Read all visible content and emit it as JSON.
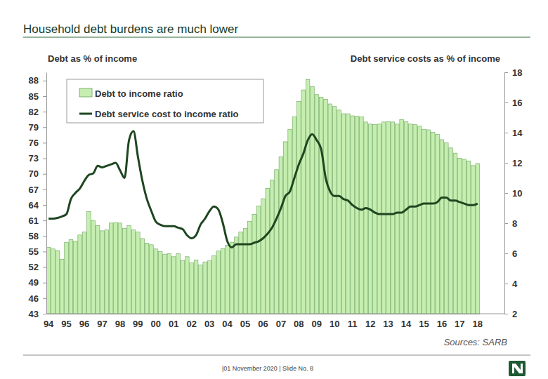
{
  "chart_data": {
    "type": "bar",
    "title": "Household debt burdens are much lower",
    "ylabel": "Debt as % of income",
    "y2label": "Debt service costs as % of income",
    "categories": [
      "94",
      null,
      null,
      null,
      "95",
      null,
      null,
      null,
      "96",
      null,
      null,
      null,
      "97",
      null,
      null,
      null,
      "98",
      null,
      null,
      null,
      "99",
      null,
      null,
      null,
      "00",
      null,
      null,
      null,
      "01",
      null,
      null,
      null,
      "02",
      null,
      null,
      null,
      "03",
      null,
      null,
      null,
      "04",
      null,
      null,
      null,
      "05",
      null,
      null,
      null,
      "06",
      null,
      null,
      null,
      "07",
      null,
      null,
      null,
      "08",
      null,
      null,
      null,
      "09",
      null,
      null,
      null,
      "10",
      null,
      null,
      null,
      "11",
      null,
      null,
      null,
      "12",
      null,
      null,
      null,
      "13",
      null,
      null,
      null,
      "14",
      null,
      null,
      null,
      "15",
      null,
      null,
      null,
      "16",
      null,
      null,
      null,
      "17",
      null,
      null,
      null,
      "18"
    ],
    "series": [
      {
        "name": "Debt to income ratio",
        "type": "bar",
        "color": "#c5eeb0",
        "values": [
          55.8,
          55.5,
          55.2,
          53.5,
          56.8,
          57.3,
          57.0,
          58.2,
          58.8,
          62.7,
          61.0,
          60.0,
          59.0,
          59.2,
          60.5,
          60.6,
          60.5,
          59.5,
          60.0,
          59.2,
          58.8,
          57.5,
          56.6,
          56.3,
          55.5,
          55.0,
          54.5,
          54.6,
          54.0,
          54.6,
          53.3,
          54.0,
          52.8,
          53.4,
          52.4,
          53.0,
          53.2,
          54.2,
          55.1,
          55.6,
          56.2,
          56.8,
          57.8,
          58.8,
          59.5,
          60.8,
          62.2,
          63.8,
          65.2,
          67.2,
          68.8,
          70.8,
          73.3,
          76.2,
          78.6,
          81.0,
          84.0,
          86.2,
          88.2,
          86.8,
          85.3,
          84.8,
          84.4,
          83.5,
          83.0,
          82.3,
          81.6,
          81.6,
          81.2,
          81.1,
          81.0,
          80.0,
          79.6,
          79.5,
          79.6,
          80.0,
          80.1,
          80.0,
          79.6,
          80.5,
          80.1,
          79.6,
          79.5,
          79.2,
          78.6,
          78.5,
          78.0,
          77.6,
          76.6,
          76.0,
          75.0,
          74.0,
          73.0,
          72.8,
          72.5,
          71.6,
          72.0
        ]
      },
      {
        "name": "Debt service cost to income ratio",
        "type": "line",
        "color": "#1e4620",
        "axis": "y2",
        "values": [
          8.3,
          8.3,
          8.35,
          8.45,
          8.6,
          9.6,
          10.0,
          10.3,
          10.8,
          11.2,
          11.3,
          11.8,
          11.7,
          11.8,
          11.9,
          12.0,
          11.5,
          11.0,
          13.5,
          14.1,
          12.4,
          10.8,
          9.6,
          8.8,
          8.1,
          7.9,
          7.8,
          7.8,
          7.8,
          7.7,
          7.6,
          7.2,
          7.0,
          7.2,
          7.9,
          8.3,
          8.8,
          9.1,
          8.9,
          8.0,
          6.8,
          6.4,
          6.6,
          6.6,
          6.6,
          6.6,
          6.7,
          6.8,
          7.0,
          7.3,
          7.7,
          8.3,
          9.0,
          9.8,
          10.1,
          11.0,
          11.9,
          12.6,
          13.5,
          13.9,
          13.5,
          12.9,
          11.0,
          10.1,
          9.8,
          9.8,
          9.6,
          9.5,
          9.2,
          9.0,
          8.9,
          9.0,
          8.9,
          8.7,
          8.6,
          8.6,
          8.6,
          8.6,
          8.7,
          8.7,
          8.9,
          9.1,
          9.1,
          9.2,
          9.3,
          9.3,
          9.3,
          9.4,
          9.7,
          9.7,
          9.5,
          9.5,
          9.4,
          9.3,
          9.2,
          9.2,
          9.3
        ]
      }
    ],
    "ylim": [
      43,
      89.6
    ],
    "yticks": [
      43,
      46,
      49,
      52,
      55,
      58,
      61,
      64,
      67,
      70,
      73,
      76,
      79,
      82,
      85,
      88
    ],
    "y2lim": [
      2,
      18
    ],
    "y2ticks": [
      2,
      4,
      6,
      8,
      10,
      12,
      14,
      16,
      18
    ],
    "legend": "upper left",
    "grid": false
  },
  "footer": {
    "source": "Sources: SARB",
    "slide": "|01 November 2020 | Slide No. 8"
  }
}
